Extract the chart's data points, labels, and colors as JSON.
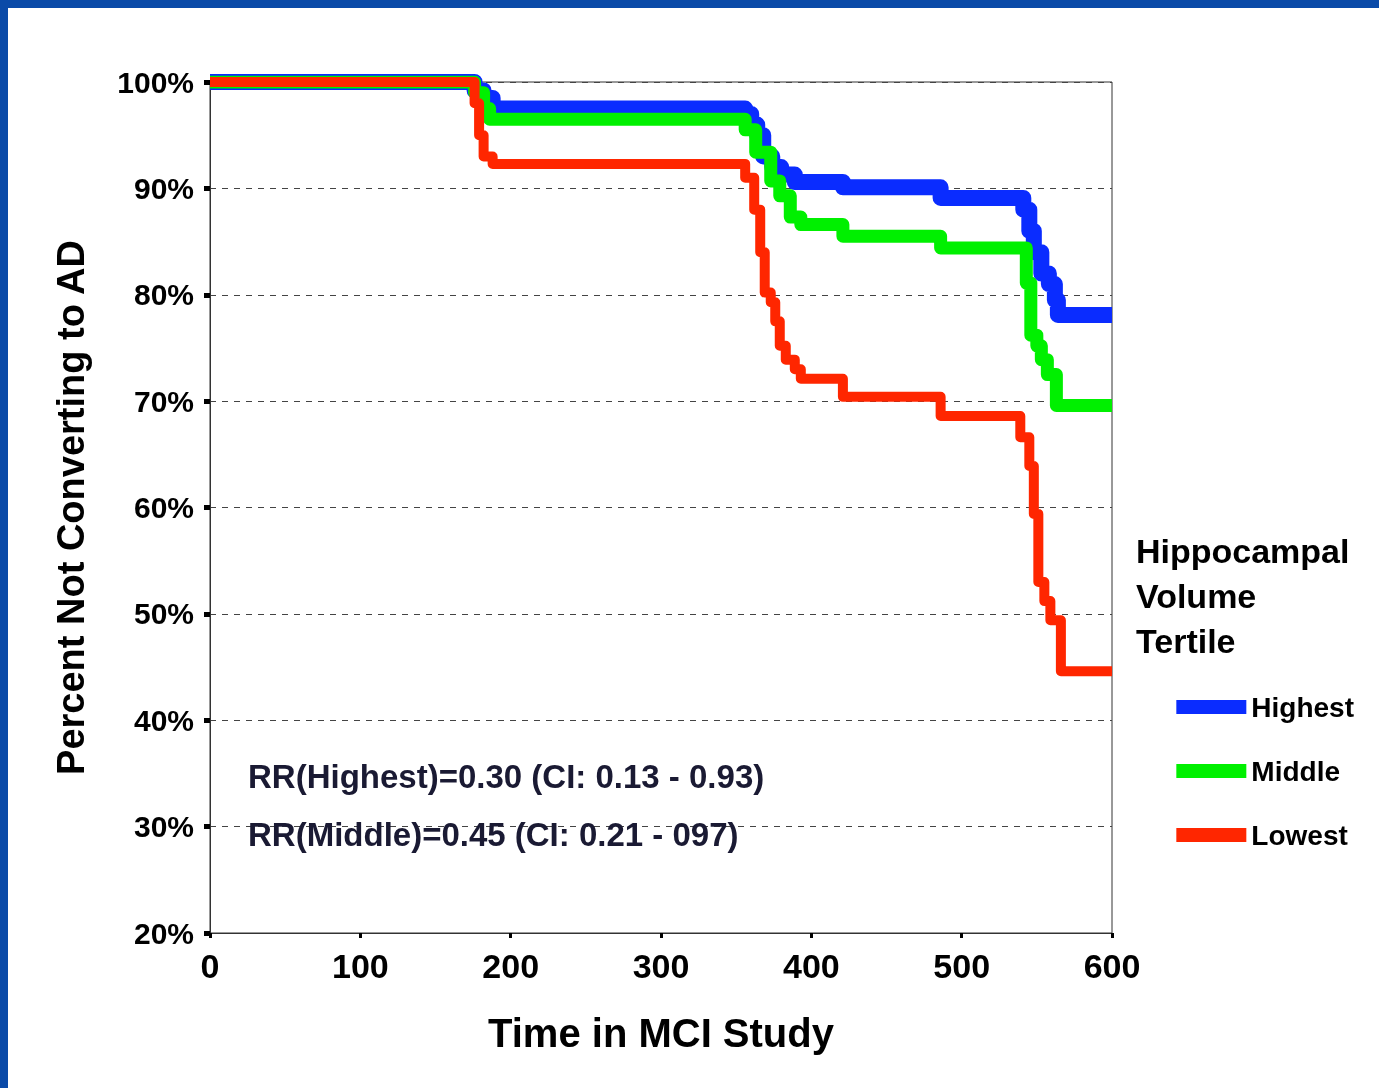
{
  "chart_data": {
    "type": "step",
    "xlabel": "Time in MCI Study",
    "ylabel": "Percent Not Converting to AD",
    "legend_title": "Hippocampal Volume Tertile",
    "xlim": [
      0,
      600
    ],
    "xticks": [
      0,
      100,
      200,
      300,
      400,
      500,
      600
    ],
    "ylim": [
      20,
      100
    ],
    "yticks": [
      {
        "value": 20,
        "label": "20%"
      },
      {
        "value": 30,
        "label": "30%"
      },
      {
        "value": 40,
        "label": "40%"
      },
      {
        "value": 50,
        "label": "50%"
      },
      {
        "value": 60,
        "label": "60%"
      },
      {
        "value": 70,
        "label": "70%"
      },
      {
        "value": 80,
        "label": "80%"
      },
      {
        "value": 90,
        "label": "90%"
      },
      {
        "value": 100,
        "label": "100%"
      }
    ],
    "grid": "y",
    "legend": "right",
    "marker": "none",
    "line_style": "solid",
    "annotations": [
      "RR(Highest)=0.30 (CI: 0.13 - 0.93)",
      "RR(Middle)=0.45 (CI: 0.21 - 097)"
    ],
    "series": [
      {
        "name": "Highest",
        "color": "#0a2cff",
        "x": [
          0,
          176,
          182,
          188,
          356,
          360,
          364,
          368,
          374,
          380,
          389,
          421,
          486,
          541,
          545,
          548,
          553,
          558,
          562,
          564,
          600
        ],
        "values": [
          100,
          99.2,
          98.5,
          97.5,
          97,
          96,
          95,
          93,
          92,
          91.3,
          90.6,
          90.1,
          89.1,
          88,
          86,
          84,
          82,
          81,
          79.5,
          78.1,
          78.1
        ]
      },
      {
        "name": "Middle",
        "color": "#00f000",
        "x": [
          0,
          176,
          182,
          186,
          356,
          363,
          373,
          379,
          386,
          393,
          421,
          486,
          543,
          546,
          550,
          553,
          557,
          563,
          600
        ],
        "values": [
          100,
          99,
          97.5,
          96.5,
          95.5,
          93.4,
          90.7,
          89.3,
          87.3,
          86.6,
          85.5,
          84.4,
          81.1,
          76.2,
          75.2,
          73.9,
          72.5,
          69.6,
          69.6
        ]
      },
      {
        "name": "Lowest",
        "color": "#ff2600",
        "x": [
          0,
          176,
          179,
          182,
          188,
          356,
          362,
          366,
          369,
          373,
          376,
          379,
          383,
          389,
          393,
          421,
          486,
          539,
          545,
          548,
          551,
          555,
          559,
          566,
          600
        ],
        "values": [
          100,
          98,
          95,
          93,
          92.3,
          91,
          88,
          84,
          80.2,
          79.3,
          77.5,
          75.2,
          73.9,
          73,
          72.1,
          70.4,
          68.6,
          66.6,
          63.9,
          59.4,
          53,
          51.2,
          49.4,
          44.6,
          44.6
        ]
      }
    ]
  }
}
